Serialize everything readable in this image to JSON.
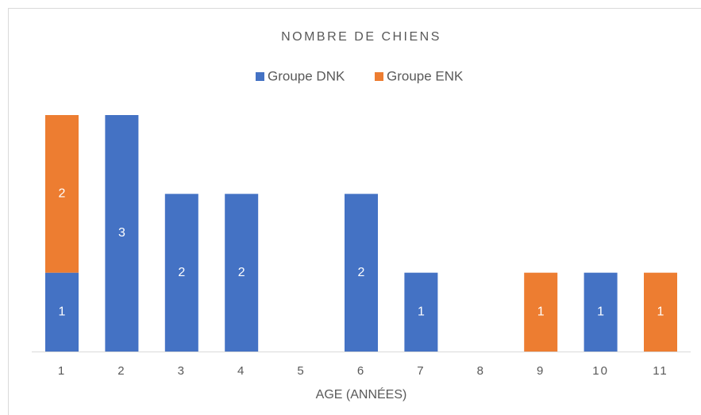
{
  "chart_data": {
    "type": "stacked_bar",
    "title": "NOMBRE DE CHIENS",
    "x_label": "AGE (ANNÉES)",
    "categories": [
      "1",
      "2",
      "3",
      "4",
      "5",
      "6",
      "7",
      "8",
      "9",
      "10",
      "11"
    ],
    "series": [
      {
        "name": "Groupe DNK",
        "color": "#4472c4",
        "values": [
          1,
          3,
          2,
          2,
          null,
          2,
          1,
          null,
          null,
          1,
          null
        ]
      },
      {
        "name": "Groupe ENK",
        "color": "#ed7d31",
        "values": [
          2,
          null,
          null,
          null,
          null,
          null,
          null,
          null,
          1,
          null,
          1
        ]
      }
    ],
    "ylim": [
      0,
      3
    ],
    "legend": "top"
  }
}
